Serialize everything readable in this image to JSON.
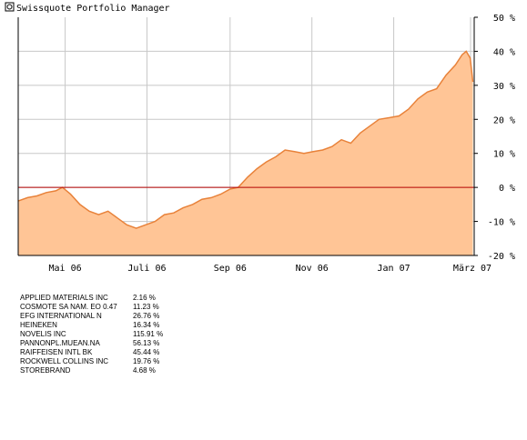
{
  "header": {
    "title": "Swissquote Portfolio Manager",
    "icon": "copyright-icon"
  },
  "colors": {
    "area_fill": "#ffc596",
    "area_line": "#e8823a",
    "zero_line": "#b40000",
    "grid": "#c8c8c8",
    "axis": "#000000"
  },
  "chart_data": {
    "type": "area",
    "title": "Swissquote Portfolio Manager",
    "xlabel": "",
    "ylabel": "",
    "x_ticks": [
      "Mai 06",
      "Juli 06",
      "Sep 06",
      "Nov 06",
      "Jan 07",
      "März 07"
    ],
    "x_range": [
      "2006-03-27",
      "2007-03-02"
    ],
    "ylim": [
      -20,
      50
    ],
    "y_ticks": [
      50,
      40,
      30,
      20,
      10,
      0,
      -10,
      -20
    ],
    "y_tick_labels": [
      "50 %",
      "40 %",
      "30 %",
      "20 %",
      "10 %",
      "0 %",
      "-10 %",
      "-20 %"
    ],
    "y_axis_side": "right",
    "grid": true,
    "reference_line": 0,
    "series": [
      {
        "values": [
          [
            "2006-03-27",
            -4
          ],
          [
            "2006-04-03",
            -3
          ],
          [
            "2006-04-10",
            -2.5
          ],
          [
            "2006-04-17",
            -1.5
          ],
          [
            "2006-04-24",
            -1
          ],
          [
            "2006-04-29",
            0
          ],
          [
            "2006-05-05",
            -2
          ],
          [
            "2006-05-12",
            -5
          ],
          [
            "2006-05-19",
            -7
          ],
          [
            "2006-05-26",
            -8
          ],
          [
            "2006-06-02",
            -7
          ],
          [
            "2006-06-09",
            -9
          ],
          [
            "2006-06-16",
            -11
          ],
          [
            "2006-06-23",
            -12
          ],
          [
            "2006-06-30",
            -11
          ],
          [
            "2006-07-07",
            -10
          ],
          [
            "2006-07-14",
            -8
          ],
          [
            "2006-07-21",
            -7.5
          ],
          [
            "2006-07-28",
            -6
          ],
          [
            "2006-08-04",
            -5
          ],
          [
            "2006-08-11",
            -3.5
          ],
          [
            "2006-08-18",
            -3
          ],
          [
            "2006-08-25",
            -2
          ],
          [
            "2006-09-01",
            -0.5
          ],
          [
            "2006-09-07",
            0
          ],
          [
            "2006-09-14",
            3
          ],
          [
            "2006-09-21",
            5.5
          ],
          [
            "2006-09-28",
            7.5
          ],
          [
            "2006-10-05",
            9
          ],
          [
            "2006-10-12",
            11
          ],
          [
            "2006-10-19",
            10.5
          ],
          [
            "2006-10-26",
            10
          ],
          [
            "2006-11-02",
            10.5
          ],
          [
            "2006-11-09",
            11
          ],
          [
            "2006-11-16",
            12
          ],
          [
            "2006-11-23",
            14
          ],
          [
            "2006-11-30",
            13
          ],
          [
            "2006-12-07",
            16
          ],
          [
            "2006-12-14",
            18
          ],
          [
            "2006-12-21",
            20
          ],
          [
            "2006-12-29",
            20.5
          ],
          [
            "2007-01-05",
            21
          ],
          [
            "2007-01-12",
            23
          ],
          [
            "2007-01-19",
            26
          ],
          [
            "2007-01-26",
            28
          ],
          [
            "2007-02-02",
            29
          ],
          [
            "2007-02-09",
            33
          ],
          [
            "2007-02-16",
            36
          ],
          [
            "2007-02-21",
            39
          ],
          [
            "2007-02-24",
            40
          ],
          [
            "2007-02-27",
            38
          ],
          [
            "2007-03-01",
            31
          ]
        ]
      }
    ]
  },
  "legend": {
    "items": [
      {
        "name": "APPLIED MATERIALS INC",
        "value": "2.16 %"
      },
      {
        "name": "COSMOTE SA NAM. EO 0.47",
        "value": "11.23 %"
      },
      {
        "name": "EFG INTERNATIONAL N",
        "value": "26.76 %"
      },
      {
        "name": "HEINEKEN",
        "value": "16.34 %"
      },
      {
        "name": "NOVELIS INC",
        "value": "115.91 %"
      },
      {
        "name": "PANNONPL.MUEAN.NA",
        "value": "56.13 %"
      },
      {
        "name": "RAIFFEISEN INTL BK",
        "value": "45.44 %"
      },
      {
        "name": "ROCKWELL COLLINS INC",
        "value": "19.76 %"
      },
      {
        "name": "STOREBRAND",
        "value": "4.68 %"
      }
    ]
  }
}
